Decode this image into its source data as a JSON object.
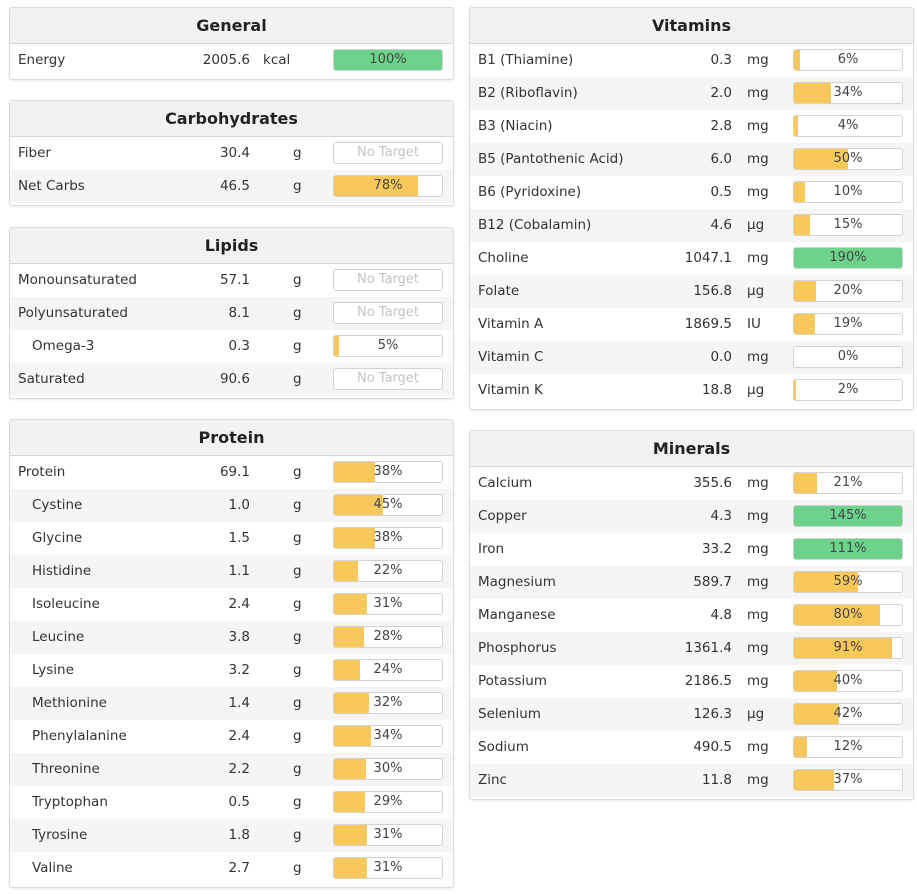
{
  "colors": {
    "bar_normal": "#f8c95a",
    "bar_over": "#6dd38b"
  },
  "general": {
    "title": "General",
    "rows": [
      {
        "name": "Energy",
        "amount": "2005.6",
        "unit": "kcal",
        "pct": 100,
        "pct_label": "100%"
      }
    ]
  },
  "carbohydrates": {
    "title": "Carbohydrates",
    "rows": [
      {
        "name": "Fiber",
        "amount": "30.4",
        "unit": "g",
        "pct": null,
        "pct_label": "No Target"
      },
      {
        "name": "Net Carbs",
        "amount": "46.5",
        "unit": "g",
        "pct": 78,
        "pct_label": "78%"
      }
    ]
  },
  "lipids": {
    "title": "Lipids",
    "rows": [
      {
        "name": "Monounsaturated",
        "amount": "57.1",
        "unit": "g",
        "pct": null,
        "pct_label": "No Target"
      },
      {
        "name": "Polyunsaturated",
        "amount": "8.1",
        "unit": "g",
        "pct": null,
        "pct_label": "No Target"
      },
      {
        "name": "Omega-3",
        "amount": "0.3",
        "unit": "g",
        "pct": 5,
        "pct_label": "5%",
        "sub": true
      },
      {
        "name": "Saturated",
        "amount": "90.6",
        "unit": "g",
        "pct": null,
        "pct_label": "No Target"
      }
    ]
  },
  "protein": {
    "title": "Protein",
    "rows": [
      {
        "name": "Protein",
        "amount": "69.1",
        "unit": "g",
        "pct": 38,
        "pct_label": "38%"
      },
      {
        "name": "Cystine",
        "amount": "1.0",
        "unit": "g",
        "pct": 45,
        "pct_label": "45%",
        "sub": true
      },
      {
        "name": "Glycine",
        "amount": "1.5",
        "unit": "g",
        "pct": 38,
        "pct_label": "38%",
        "sub": true
      },
      {
        "name": "Histidine",
        "amount": "1.1",
        "unit": "g",
        "pct": 22,
        "pct_label": "22%",
        "sub": true
      },
      {
        "name": "Isoleucine",
        "amount": "2.4",
        "unit": "g",
        "pct": 31,
        "pct_label": "31%",
        "sub": true
      },
      {
        "name": "Leucine",
        "amount": "3.8",
        "unit": "g",
        "pct": 28,
        "pct_label": "28%",
        "sub": true
      },
      {
        "name": "Lysine",
        "amount": "3.2",
        "unit": "g",
        "pct": 24,
        "pct_label": "24%",
        "sub": true
      },
      {
        "name": "Methionine",
        "amount": "1.4",
        "unit": "g",
        "pct": 32,
        "pct_label": "32%",
        "sub": true
      },
      {
        "name": "Phenylalanine",
        "amount": "2.4",
        "unit": "g",
        "pct": 34,
        "pct_label": "34%",
        "sub": true
      },
      {
        "name": "Threonine",
        "amount": "2.2",
        "unit": "g",
        "pct": 30,
        "pct_label": "30%",
        "sub": true
      },
      {
        "name": "Tryptophan",
        "amount": "0.5",
        "unit": "g",
        "pct": 29,
        "pct_label": "29%",
        "sub": true
      },
      {
        "name": "Tyrosine",
        "amount": "1.8",
        "unit": "g",
        "pct": 31,
        "pct_label": "31%",
        "sub": true
      },
      {
        "name": "Valine",
        "amount": "2.7",
        "unit": "g",
        "pct": 31,
        "pct_label": "31%",
        "sub": true
      }
    ]
  },
  "vitamins": {
    "title": "Vitamins",
    "rows": [
      {
        "name": "B1 (Thiamine)",
        "amount": "0.3",
        "unit": "mg",
        "pct": 6,
        "pct_label": "6%"
      },
      {
        "name": "B2 (Riboflavin)",
        "amount": "2.0",
        "unit": "mg",
        "pct": 34,
        "pct_label": "34%"
      },
      {
        "name": "B3 (Niacin)",
        "amount": "2.8",
        "unit": "mg",
        "pct": 4,
        "pct_label": "4%"
      },
      {
        "name": "B5 (Pantothenic Acid)",
        "amount": "6.0",
        "unit": "mg",
        "pct": 50,
        "pct_label": "50%"
      },
      {
        "name": "B6 (Pyridoxine)",
        "amount": "0.5",
        "unit": "mg",
        "pct": 10,
        "pct_label": "10%"
      },
      {
        "name": "B12 (Cobalamin)",
        "amount": "4.6",
        "unit": "µg",
        "pct": 15,
        "pct_label": "15%"
      },
      {
        "name": "Choline",
        "amount": "1047.1",
        "unit": "mg",
        "pct": 190,
        "pct_label": "190%"
      },
      {
        "name": "Folate",
        "amount": "156.8",
        "unit": "µg",
        "pct": 20,
        "pct_label": "20%"
      },
      {
        "name": "Vitamin A",
        "amount": "1869.5",
        "unit": "IU",
        "pct": 19,
        "pct_label": "19%"
      },
      {
        "name": "Vitamin C",
        "amount": "0.0",
        "unit": "mg",
        "pct": 0,
        "pct_label": "0%"
      },
      {
        "name": "Vitamin K",
        "amount": "18.8",
        "unit": "µg",
        "pct": 2,
        "pct_label": "2%"
      }
    ]
  },
  "minerals": {
    "title": "Minerals",
    "rows": [
      {
        "name": "Calcium",
        "amount": "355.6",
        "unit": "mg",
        "pct": 21,
        "pct_label": "21%"
      },
      {
        "name": "Copper",
        "amount": "4.3",
        "unit": "mg",
        "pct": 145,
        "pct_label": "145%"
      },
      {
        "name": "Iron",
        "amount": "33.2",
        "unit": "mg",
        "pct": 111,
        "pct_label": "111%"
      },
      {
        "name": "Magnesium",
        "amount": "589.7",
        "unit": "mg",
        "pct": 59,
        "pct_label": "59%"
      },
      {
        "name": "Manganese",
        "amount": "4.8",
        "unit": "mg",
        "pct": 80,
        "pct_label": "80%"
      },
      {
        "name": "Phosphorus",
        "amount": "1361.4",
        "unit": "mg",
        "pct": 91,
        "pct_label": "91%"
      },
      {
        "name": "Potassium",
        "amount": "2186.5",
        "unit": "mg",
        "pct": 40,
        "pct_label": "40%"
      },
      {
        "name": "Selenium",
        "amount": "126.3",
        "unit": "µg",
        "pct": 42,
        "pct_label": "42%"
      },
      {
        "name": "Sodium",
        "amount": "490.5",
        "unit": "mg",
        "pct": 12,
        "pct_label": "12%"
      },
      {
        "name": "Zinc",
        "amount": "11.8",
        "unit": "mg",
        "pct": 37,
        "pct_label": "37%"
      }
    ]
  }
}
